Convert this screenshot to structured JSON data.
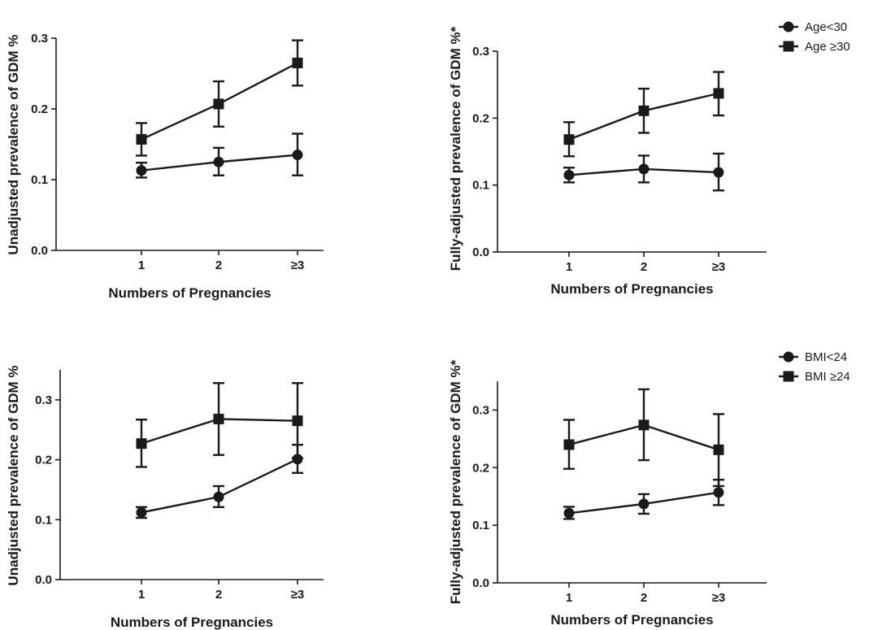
{
  "chart_data": [
    {
      "type": "line",
      "xlabel": "Numbers of Pregnancies",
      "ylabel": "Unadjusted prevalence of GDM %",
      "categories": [
        "1",
        "2",
        "≥3"
      ],
      "ylim": [
        0,
        0.3
      ],
      "yticks": [
        "0.0",
        "0.1",
        "0.2",
        "0.3"
      ],
      "series": [
        {
          "name": "Age<30",
          "marker": "circle",
          "values": [
            0.113,
            0.125,
            0.135
          ],
          "err_low": [
            0.103,
            0.106,
            0.106
          ],
          "err_high": [
            0.124,
            0.145,
            0.165
          ]
        },
        {
          "name": "Age ≥30",
          "marker": "square",
          "values": [
            0.157,
            0.207,
            0.265
          ],
          "err_low": [
            0.134,
            0.175,
            0.233
          ],
          "err_high": [
            0.18,
            0.239,
            0.297
          ]
        }
      ]
    },
    {
      "type": "line",
      "xlabel": "Numbers of Pregnancies",
      "ylabel": "Fully-adjusted prevalence of GDM %*",
      "categories": [
        "1",
        "2",
        "≥3"
      ],
      "ylim": [
        0,
        0.3
      ],
      "yticks": [
        "0.0",
        "0.1",
        "0.2",
        "0.3"
      ],
      "legend": [
        {
          "label": "Age<30",
          "marker": "circle"
        },
        {
          "label": "Age ≥30",
          "marker": "square"
        }
      ],
      "series": [
        {
          "name": "Age<30",
          "marker": "circle",
          "values": [
            0.115,
            0.124,
            0.119
          ],
          "err_low": [
            0.104,
            0.104,
            0.092
          ],
          "err_high": [
            0.126,
            0.144,
            0.147
          ]
        },
        {
          "name": "Age ≥30",
          "marker": "square",
          "values": [
            0.168,
            0.211,
            0.237
          ],
          "err_low": [
            0.143,
            0.178,
            0.204
          ],
          "err_high": [
            0.194,
            0.244,
            0.269
          ]
        }
      ]
    },
    {
      "type": "line",
      "xlabel": "Numbers of Pregnancies",
      "ylabel": "Unadjusted prevalence of GDM %",
      "categories": [
        "1",
        "2",
        "≥3"
      ],
      "ylim": [
        0,
        0.35
      ],
      "yticks": [
        "0.0",
        "0.1",
        "0.2",
        "0.3"
      ],
      "series": [
        {
          "name": "BMI<24",
          "marker": "circle",
          "values": [
            0.112,
            0.138,
            0.201
          ],
          "err_low": [
            0.103,
            0.121,
            0.178
          ],
          "err_high": [
            0.121,
            0.156,
            0.225
          ]
        },
        {
          "name": "BMI ≥24",
          "marker": "square",
          "values": [
            0.227,
            0.268,
            0.265
          ],
          "err_low": [
            0.188,
            0.208,
            0.203
          ],
          "err_high": [
            0.267,
            0.328,
            0.328
          ]
        }
      ]
    },
    {
      "type": "line",
      "xlabel": "Numbers of Pregnancies",
      "ylabel": "Fully-adjusted prevalence of GDM %*",
      "categories": [
        "1",
        "2",
        "≥3"
      ],
      "ylim": [
        0,
        0.35
      ],
      "yticks": [
        "0.0",
        "0.1",
        "0.2",
        "0.3"
      ],
      "legend": [
        {
          "label": "BMI<24",
          "marker": "circle"
        },
        {
          "label": "BMI ≥24",
          "marker": "square"
        }
      ],
      "series": [
        {
          "name": "BMI<24",
          "marker": "circle",
          "values": [
            0.121,
            0.137,
            0.157
          ],
          "err_low": [
            0.111,
            0.12,
            0.135
          ],
          "err_high": [
            0.132,
            0.154,
            0.179
          ]
        },
        {
          "name": "BMI ≥24",
          "marker": "square",
          "values": [
            0.24,
            0.274,
            0.231
          ],
          "err_low": [
            0.198,
            0.213,
            0.168
          ],
          "err_high": [
            0.283,
            0.336,
            0.293
          ]
        }
      ]
    }
  ]
}
